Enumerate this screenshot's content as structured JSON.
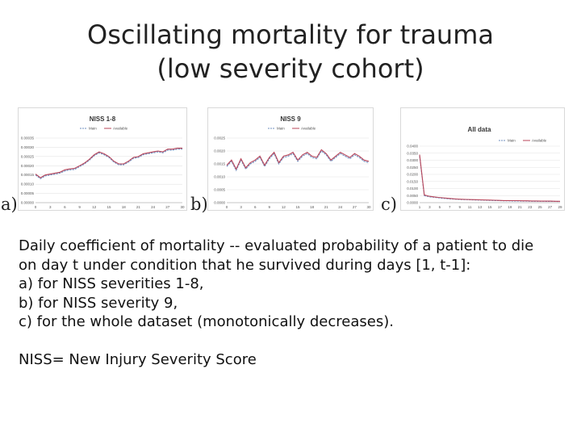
{
  "slide": {
    "title_line1": "Oscillating mortality for trauma",
    "title_line2": "(low severity cohort)",
    "panel_labels": [
      "a)",
      "b)",
      "c)"
    ],
    "caption_line1": "Daily coefficient of mortality -- evaluated probability of a patient to die",
    "caption_line2": "on day  t under condition that he survived during days [1, t-1]:",
    "caption_line3": "a) for NISS severities 1-8,",
    "caption_line4": "b) for NISS severity 9,",
    "caption_line5": "c) for the whole dataset (monotonically decreases).",
    "footnote": "NISS= New Injury Severity Score"
  },
  "chart_data": [
    {
      "type": "line",
      "title": "NISS 1-8",
      "legend_position": "top-center",
      "grid": true,
      "x": [
        0,
        1,
        2,
        3,
        4,
        5,
        6,
        7,
        8,
        9,
        10,
        11,
        12,
        13,
        14,
        15,
        16,
        17,
        18,
        19,
        20,
        21,
        22,
        23,
        24,
        25,
        26,
        27,
        28,
        29,
        30
      ],
      "x_ticks": [
        "0",
        "3",
        "6",
        "9",
        "12",
        "15",
        "18",
        "21",
        "24",
        "27",
        "30"
      ],
      "y_ticks": [
        "0.00000",
        "0.00005",
        "0.00010",
        "0.00015",
        "0.00020",
        "0.00025",
        "0.00030",
        "0.00035"
      ],
      "ylim": [
        0,
        0.00035
      ],
      "series": [
        {
          "name": "Main",
          "color": "#6f8fbf",
          "dash": true,
          "values": [
            0.00015,
            0.00013,
            0.000145,
            0.00015,
            0.000155,
            0.00016,
            0.000172,
            0.000178,
            0.00018,
            0.000195,
            0.00021,
            0.00023,
            0.000255,
            0.00027,
            0.00026,
            0.000245,
            0.00022,
            0.000205,
            0.000205,
            0.00022,
            0.00024,
            0.000245,
            0.00026,
            0.000265,
            0.00027,
            0.000275,
            0.00027,
            0.000285,
            0.000285,
            0.00029,
            0.00029
          ]
        },
        {
          "name": "Available",
          "color": "#b9465a",
          "dash": false,
          "values": [
            0.000155,
            0.000135,
            0.00015,
            0.000155,
            0.00016,
            0.000165,
            0.000178,
            0.000183,
            0.000186,
            0.0002,
            0.000215,
            0.000235,
            0.00026,
            0.000275,
            0.000265,
            0.00025,
            0.000225,
            0.00021,
            0.00021,
            0.000225,
            0.000245,
            0.00025,
            0.000265,
            0.00027,
            0.000275,
            0.00028,
            0.000275,
            0.00029,
            0.00029,
            0.000295,
            0.000295
          ]
        }
      ]
    },
    {
      "type": "line",
      "title": "NISS 9",
      "legend_position": "top-center",
      "grid": true,
      "x": [
        0,
        1,
        2,
        3,
        4,
        5,
        6,
        7,
        8,
        9,
        10,
        11,
        12,
        13,
        14,
        15,
        16,
        17,
        18,
        19,
        20,
        21,
        22,
        23,
        24,
        25,
        26,
        27,
        28,
        29,
        30
      ],
      "x_ticks": [
        "0",
        "3",
        "6",
        "9",
        "12",
        "15",
        "18",
        "21",
        "24",
        "27",
        "30"
      ],
      "y_ticks": [
        "0.0000",
        "0.0005",
        "0.0010",
        "0.0015",
        "0.0020",
        "0.0025"
      ],
      "ylim": [
        0,
        0.0025
      ],
      "series": [
        {
          "name": "Main",
          "color": "#6f8fbf",
          "dash": true,
          "values": [
            0.0014,
            0.0016,
            0.00125,
            0.00165,
            0.0013,
            0.0015,
            0.0016,
            0.00175,
            0.0014,
            0.0017,
            0.0019,
            0.0015,
            0.00175,
            0.0018,
            0.0019,
            0.0016,
            0.0018,
            0.0019,
            0.00175,
            0.0017,
            0.002,
            0.00185,
            0.0016,
            0.00175,
            0.0019,
            0.0018,
            0.0017,
            0.00185,
            0.00175,
            0.0016,
            0.00155
          ]
        },
        {
          "name": "Available",
          "color": "#b9465a",
          "dash": false,
          "values": [
            0.00145,
            0.00165,
            0.0013,
            0.0017,
            0.00135,
            0.00155,
            0.00165,
            0.0018,
            0.00145,
            0.00175,
            0.00195,
            0.00155,
            0.0018,
            0.00185,
            0.00195,
            0.00165,
            0.00185,
            0.00195,
            0.0018,
            0.00175,
            0.00205,
            0.0019,
            0.00165,
            0.0018,
            0.00195,
            0.00185,
            0.00175,
            0.0019,
            0.0018,
            0.00165,
            0.0016
          ]
        }
      ]
    },
    {
      "type": "line",
      "title": "All data",
      "legend_position": "top-right",
      "grid": true,
      "x": [
        0,
        1,
        2,
        3,
        4,
        5,
        6,
        7,
        8,
        9,
        10,
        11,
        12,
        13,
        14,
        15,
        16,
        17,
        18,
        19,
        20,
        21,
        22,
        23,
        24,
        25,
        26,
        27,
        28,
        29,
        30
      ],
      "x_ticks": [
        "1",
        "3",
        "5",
        "7",
        "9",
        "11",
        "13",
        "15",
        "17",
        "19",
        "21",
        "23",
        "25",
        "27",
        "29"
      ],
      "y_ticks": [
        "0.0000",
        "0.0050",
        "0.0100",
        "0.0150",
        "0.0200",
        "0.0250",
        "0.0300",
        "0.0350",
        "0.0400"
      ],
      "ylim": [
        0,
        0.04
      ],
      "series": [
        {
          "name": "Main",
          "color": "#6f8fbf",
          "dash": true,
          "values": [
            0.033,
            0.005,
            0.0042,
            0.0038,
            0.0034,
            0.0031,
            0.0028,
            0.0026,
            0.0024,
            0.0022,
            0.0021,
            0.002,
            0.0019,
            0.0018,
            0.0017,
            0.0016,
            0.0015,
            0.0014,
            0.0013,
            0.0013,
            0.0012,
            0.0012,
            0.0011,
            0.0011,
            0.001,
            0.001,
            0.001,
            0.0009,
            0.0009,
            0.0009,
            0.0008
          ]
        },
        {
          "name": "Available",
          "color": "#b9465a",
          "dash": false,
          "values": [
            0.034,
            0.0055,
            0.0046,
            0.0041,
            0.0037,
            0.0034,
            0.0031,
            0.0028,
            0.0026,
            0.0024,
            0.0023,
            0.0022,
            0.0021,
            0.002,
            0.0019,
            0.0018,
            0.0017,
            0.0016,
            0.0015,
            0.0015,
            0.0014,
            0.0014,
            0.0013,
            0.0013,
            0.0012,
            0.0012,
            0.0011,
            0.0011,
            0.0011,
            0.001,
            0.001
          ]
        }
      ]
    }
  ]
}
